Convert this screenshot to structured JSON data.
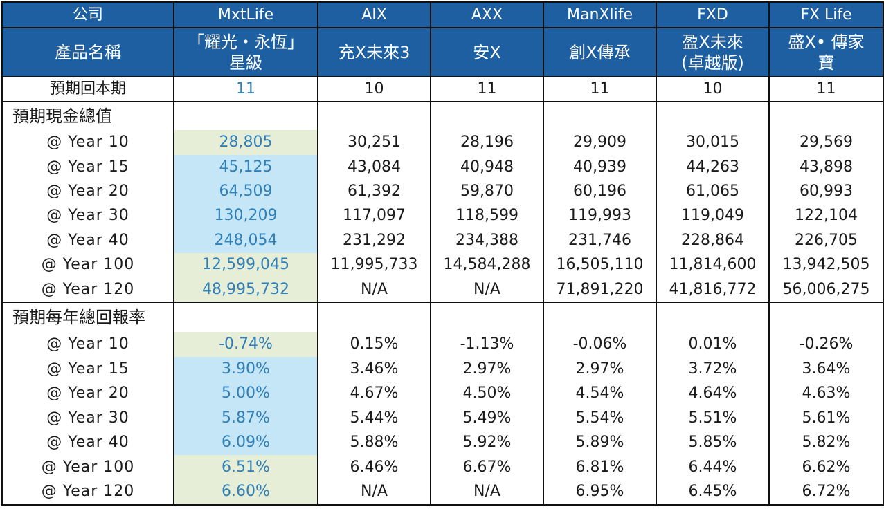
{
  "header": {
    "company_label": "公司",
    "product_label": "產品名稱",
    "companies": [
      "MxtLife",
      "AIX",
      "AXX",
      "ManXlife",
      "FXD",
      "FX Life"
    ],
    "products": [
      "「耀光・永恆」\n星級",
      "充X未來3",
      "安X",
      "創X傳承",
      "盈X未來\n(卓越版)",
      "盛X• 傳家\n寶"
    ]
  },
  "payback": {
    "label": "預期回本期",
    "values": [
      "11",
      "10",
      "11",
      "11",
      "10",
      "11"
    ]
  },
  "cash_value": {
    "label": "預期現金總值",
    "rows": [
      {
        "year": "@ Year 10",
        "values": [
          "28,805",
          "30,251",
          "28,196",
          "29,909",
          "30,015",
          "29,569"
        ]
      },
      {
        "year": "@ Year 15",
        "values": [
          "45,125",
          "43,084",
          "40,948",
          "40,939",
          "44,263",
          "43,898"
        ]
      },
      {
        "year": "@ Year 20",
        "values": [
          "64,509",
          "61,392",
          "59,870",
          "60,196",
          "61,065",
          "60,993"
        ]
      },
      {
        "year": "@ Year 30",
        "values": [
          "130,209",
          "117,097",
          "118,599",
          "119,993",
          "119,049",
          "122,104"
        ]
      },
      {
        "year": "@ Year 40",
        "values": [
          "248,054",
          "231,292",
          "234,388",
          "231,746",
          "228,864",
          "226,705"
        ]
      },
      {
        "year": "@ Year 100",
        "values": [
          "12,599,045",
          "11,995,733",
          "14,584,288",
          "16,505,110",
          "11,814,600",
          "13,942,505"
        ]
      },
      {
        "year": "@ Year 120",
        "values": [
          "48,995,732",
          "N/A",
          "N/A",
          "71,891,220",
          "41,816,772",
          "56,006,275"
        ]
      }
    ]
  },
  "annual_return": {
    "label": "預期每年總回報率",
    "rows": [
      {
        "year": "@ Year 10",
        "values": [
          "-0.74%",
          "0.15%",
          "-1.13%",
          "-0.06%",
          "0.01%",
          "-0.26%"
        ]
      },
      {
        "year": "@ Year 15",
        "values": [
          "3.90%",
          "3.46%",
          "2.97%",
          "2.97%",
          "3.72%",
          "3.64%"
        ]
      },
      {
        "year": "@ Year 20",
        "values": [
          "5.00%",
          "4.67%",
          "4.50%",
          "4.54%",
          "4.64%",
          "4.63%"
        ]
      },
      {
        "year": "@ Year 30",
        "values": [
          "5.87%",
          "5.44%",
          "5.49%",
          "5.54%",
          "5.51%",
          "5.61%"
        ]
      },
      {
        "year": "@ Year 40",
        "values": [
          "6.09%",
          "5.88%",
          "5.92%",
          "5.89%",
          "5.85%",
          "5.82%"
        ]
      },
      {
        "year": "@ Year 100",
        "values": [
          "6.51%",
          "6.46%",
          "6.67%",
          "6.81%",
          "6.44%",
          "6.62%"
        ]
      },
      {
        "year": "@ Year 120",
        "values": [
          "6.60%",
          "N/A",
          "N/A",
          "6.95%",
          "6.45%",
          "6.72%"
        ]
      }
    ]
  },
  "colors": {
    "header_bg": "#1d5fa0",
    "highlight_text": "#2f7fb8",
    "highlight_green": "#e7eed8",
    "highlight_blue": "#c5e6f7"
  },
  "highlight_pattern": [
    "green",
    "blue",
    "blue",
    "blue",
    "blue",
    "green",
    "green"
  ]
}
